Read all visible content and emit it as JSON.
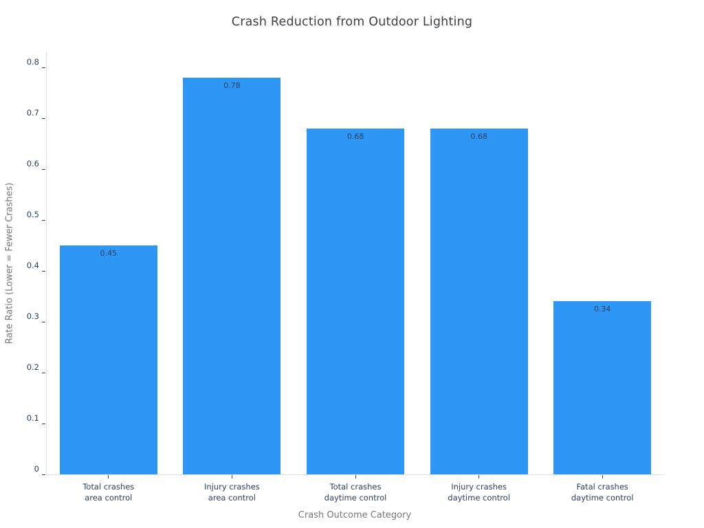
{
  "chart_data": {
    "type": "bar",
    "title": "Crash Reduction from Outdoor Lighting",
    "xlabel": "Crash Outcome Category",
    "ylabel": "Rate Ratio (Lower = Fewer Crashes)",
    "categories": [
      {
        "line1": "Total crashes",
        "line2": "area control"
      },
      {
        "line1": "Injury crashes",
        "line2": "area control"
      },
      {
        "line1": "Total crashes",
        "line2": "daytime control"
      },
      {
        "line1": "Injury crashes",
        "line2": "daytime control"
      },
      {
        "line1": "Fatal crashes",
        "line2": "daytime control"
      }
    ],
    "values": [
      0.45,
      0.78,
      0.68,
      0.68,
      0.34
    ],
    "bar_labels": [
      "0.45",
      "0.78",
      "0.68",
      "0.68",
      "0.34"
    ],
    "yticks": [
      "0",
      "0.1",
      "0.2",
      "0.3",
      "0.4",
      "0.5",
      "0.6",
      "0.7",
      "0.8"
    ],
    "ylim": [
      0,
      0.83
    ],
    "grid": false,
    "legend": false,
    "colors": {
      "bar": "#2e96f5",
      "bar_label_text": "#2a3f5f",
      "tick_text": "#2a3f5f",
      "axis_title_text": "#777777",
      "title_text": "#3b4046",
      "axis_line": "#e3e3e3",
      "tick_mark": "#444444"
    }
  }
}
